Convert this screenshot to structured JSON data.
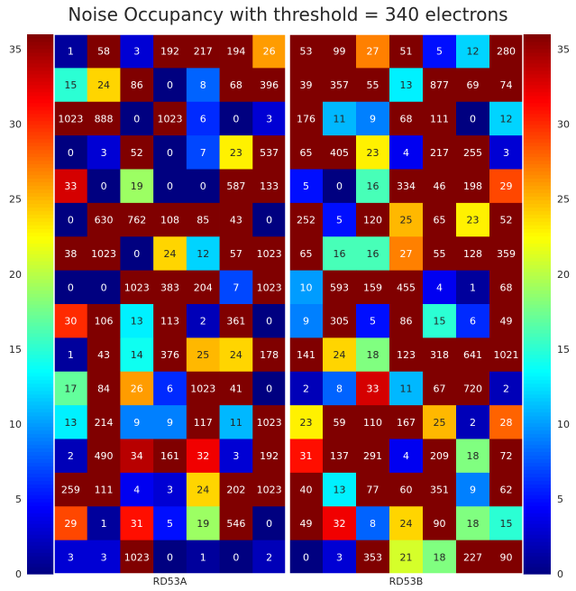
{
  "chart_data": {
    "type": "heatmap",
    "title": "Noise Occupancy with threshold = 340 electrons",
    "colormap": "jet",
    "clim": [
      0,
      36
    ],
    "ylim": [
      0,
      36
    ],
    "grid": false,
    "y_ticks": [
      "0",
      "5",
      "10",
      "15",
      "20",
      "25",
      "30",
      "35"
    ],
    "colorbar_ticks": [
      "0",
      "5",
      "10",
      "15",
      "20",
      "25",
      "30",
      "35"
    ],
    "x_labels": [
      "RD53A",
      "RD53B"
    ],
    "panels": [
      {
        "name": "RD53A",
        "rows": [
          [
            1,
            58,
            3,
            192,
            217,
            194,
            26
          ],
          [
            15,
            24,
            86,
            0,
            8,
            68,
            396
          ],
          [
            1023,
            888,
            0,
            1023,
            6,
            0,
            3
          ],
          [
            0,
            3,
            52,
            0,
            7,
            23,
            537
          ],
          [
            33,
            0,
            19,
            0,
            0,
            587,
            133
          ],
          [
            0,
            630,
            762,
            108,
            85,
            43,
            0
          ],
          [
            38,
            1023,
            0,
            24,
            12,
            57,
            1023
          ],
          [
            0,
            0,
            1023,
            383,
            204,
            7,
            1023
          ],
          [
            30,
            106,
            13,
            113,
            2,
            361,
            0
          ],
          [
            1,
            43,
            14,
            376,
            25,
            24,
            178
          ],
          [
            17,
            84,
            26,
            6,
            1023,
            41,
            0
          ],
          [
            13,
            214,
            9,
            9,
            117,
            11,
            1023
          ],
          [
            2,
            490,
            34,
            161,
            32,
            3,
            192
          ],
          [
            259,
            111,
            4,
            3,
            24,
            202,
            1023
          ],
          [
            29,
            1,
            31,
            5,
            19,
            546,
            0
          ],
          [
            3,
            3,
            1023,
            0,
            1,
            0,
            2
          ]
        ]
      },
      {
        "name": "RD53B",
        "rows": [
          [
            53,
            99,
            27,
            51,
            5,
            12,
            280
          ],
          [
            39,
            357,
            55,
            13,
            877,
            69,
            74
          ],
          [
            176,
            11,
            9,
            68,
            111,
            0,
            12
          ],
          [
            65,
            405,
            23,
            4,
            217,
            255,
            3
          ],
          [
            5,
            0,
            16,
            334,
            46,
            198,
            29
          ],
          [
            252,
            5,
            120,
            25,
            65,
            23,
            52
          ],
          [
            65,
            16,
            16,
            27,
            55,
            128,
            359
          ],
          [
            10,
            593,
            159,
            455,
            4,
            1,
            68
          ],
          [
            9,
            305,
            5,
            86,
            15,
            6,
            49
          ],
          [
            141,
            24,
            18,
            123,
            318,
            641,
            1021
          ],
          [
            2,
            8,
            33,
            11,
            67,
            720,
            2
          ],
          [
            23,
            59,
            110,
            167,
            25,
            2,
            28
          ],
          [
            31,
            137,
            291,
            4,
            209,
            18,
            72
          ],
          [
            40,
            13,
            77,
            60,
            351,
            9,
            62
          ],
          [
            49,
            32,
            8,
            24,
            90,
            18,
            15
          ],
          [
            0,
            3,
            353,
            21,
            18,
            227,
            90
          ]
        ]
      }
    ]
  }
}
